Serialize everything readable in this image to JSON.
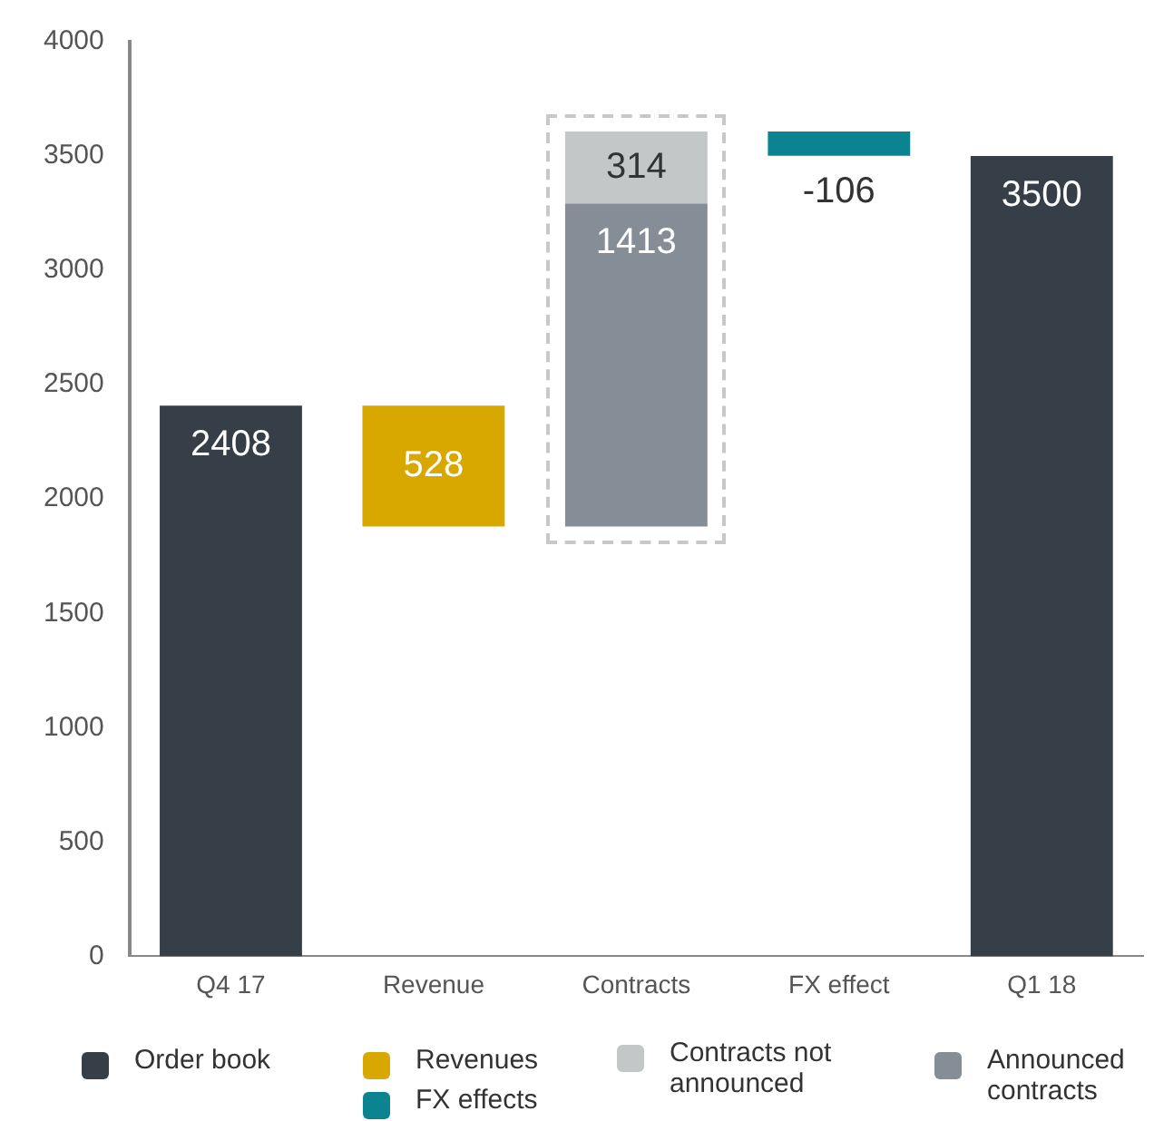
{
  "chart_data": {
    "type": "bar",
    "categories": [
      "Q4 17",
      "Revenue",
      "Contracts",
      "FX effect",
      "Q1 18"
    ],
    "series": [
      {
        "name": "Order book",
        "color": "#363f48",
        "values": [
          2408,
          null,
          null,
          null,
          3500
        ],
        "base": [
          0,
          null,
          null,
          null,
          0
        ]
      },
      {
        "name": "Revenues",
        "color": "#d9a800",
        "values": [
          null,
          528,
          null,
          null,
          null
        ],
        "base": [
          null,
          1880,
          null,
          null,
          null
        ]
      },
      {
        "name": "FX effects",
        "color": "#0b8390",
        "values": [
          null,
          null,
          null,
          -106,
          null
        ],
        "base": [
          null,
          null,
          null,
          3607,
          null
        ]
      },
      {
        "name": "Contracts not announced",
        "color": "#c3c7c8",
        "values": [
          null,
          null,
          314,
          null,
          null
        ],
        "base": [
          null,
          null,
          3293,
          null,
          null
        ]
      },
      {
        "name": "Announced contracts",
        "color": "#858e97",
        "values": [
          null,
          null,
          1413,
          null,
          null
        ],
        "base": [
          null,
          null,
          1880,
          null,
          null
        ]
      }
    ],
    "ylim": [
      0,
      4000
    ],
    "yticks": [
      0,
      500,
      1000,
      1500,
      2000,
      2500,
      3000,
      3500,
      4000
    ],
    "grid": false,
    "legend": "bottom",
    "data_labels": true
  }
}
